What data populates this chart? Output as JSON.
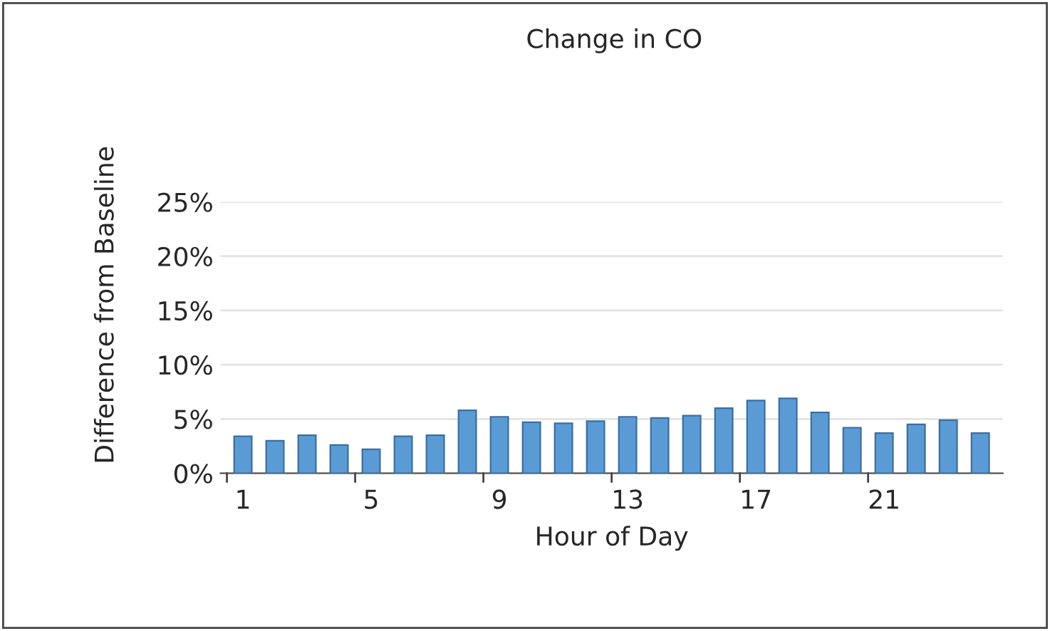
{
  "chart_data": {
    "type": "bar",
    "title": "Change in CO",
    "xlabel": "Hour of Day",
    "ylabel": "Difference from Baseline",
    "categories": [
      "1",
      null,
      null,
      null,
      "5",
      null,
      null,
      null,
      "9",
      null,
      null,
      null,
      "13",
      null,
      null,
      null,
      "17",
      null,
      null,
      null,
      "21",
      null,
      null,
      null
    ],
    "values": [
      3.4,
      3.0,
      3.5,
      2.6,
      2.2,
      3.4,
      3.5,
      5.8,
      5.2,
      4.7,
      4.6,
      4.8,
      5.2,
      5.1,
      5.3,
      6.0,
      6.7,
      6.9,
      5.6,
      4.2,
      3.7,
      4.5,
      4.9,
      3.7
    ],
    "color": "#5b9bd5",
    "ylim": [
      0,
      25
    ],
    "yticks": [
      {
        "value": 0,
        "label": "0%"
      },
      {
        "value": 5,
        "label": "5%"
      },
      {
        "value": 10,
        "label": "10%"
      },
      {
        "value": 15,
        "label": "15%"
      },
      {
        "value": 20,
        "label": "20%"
      },
      {
        "value": 25,
        "label": "25%"
      }
    ],
    "grid": "y"
  }
}
